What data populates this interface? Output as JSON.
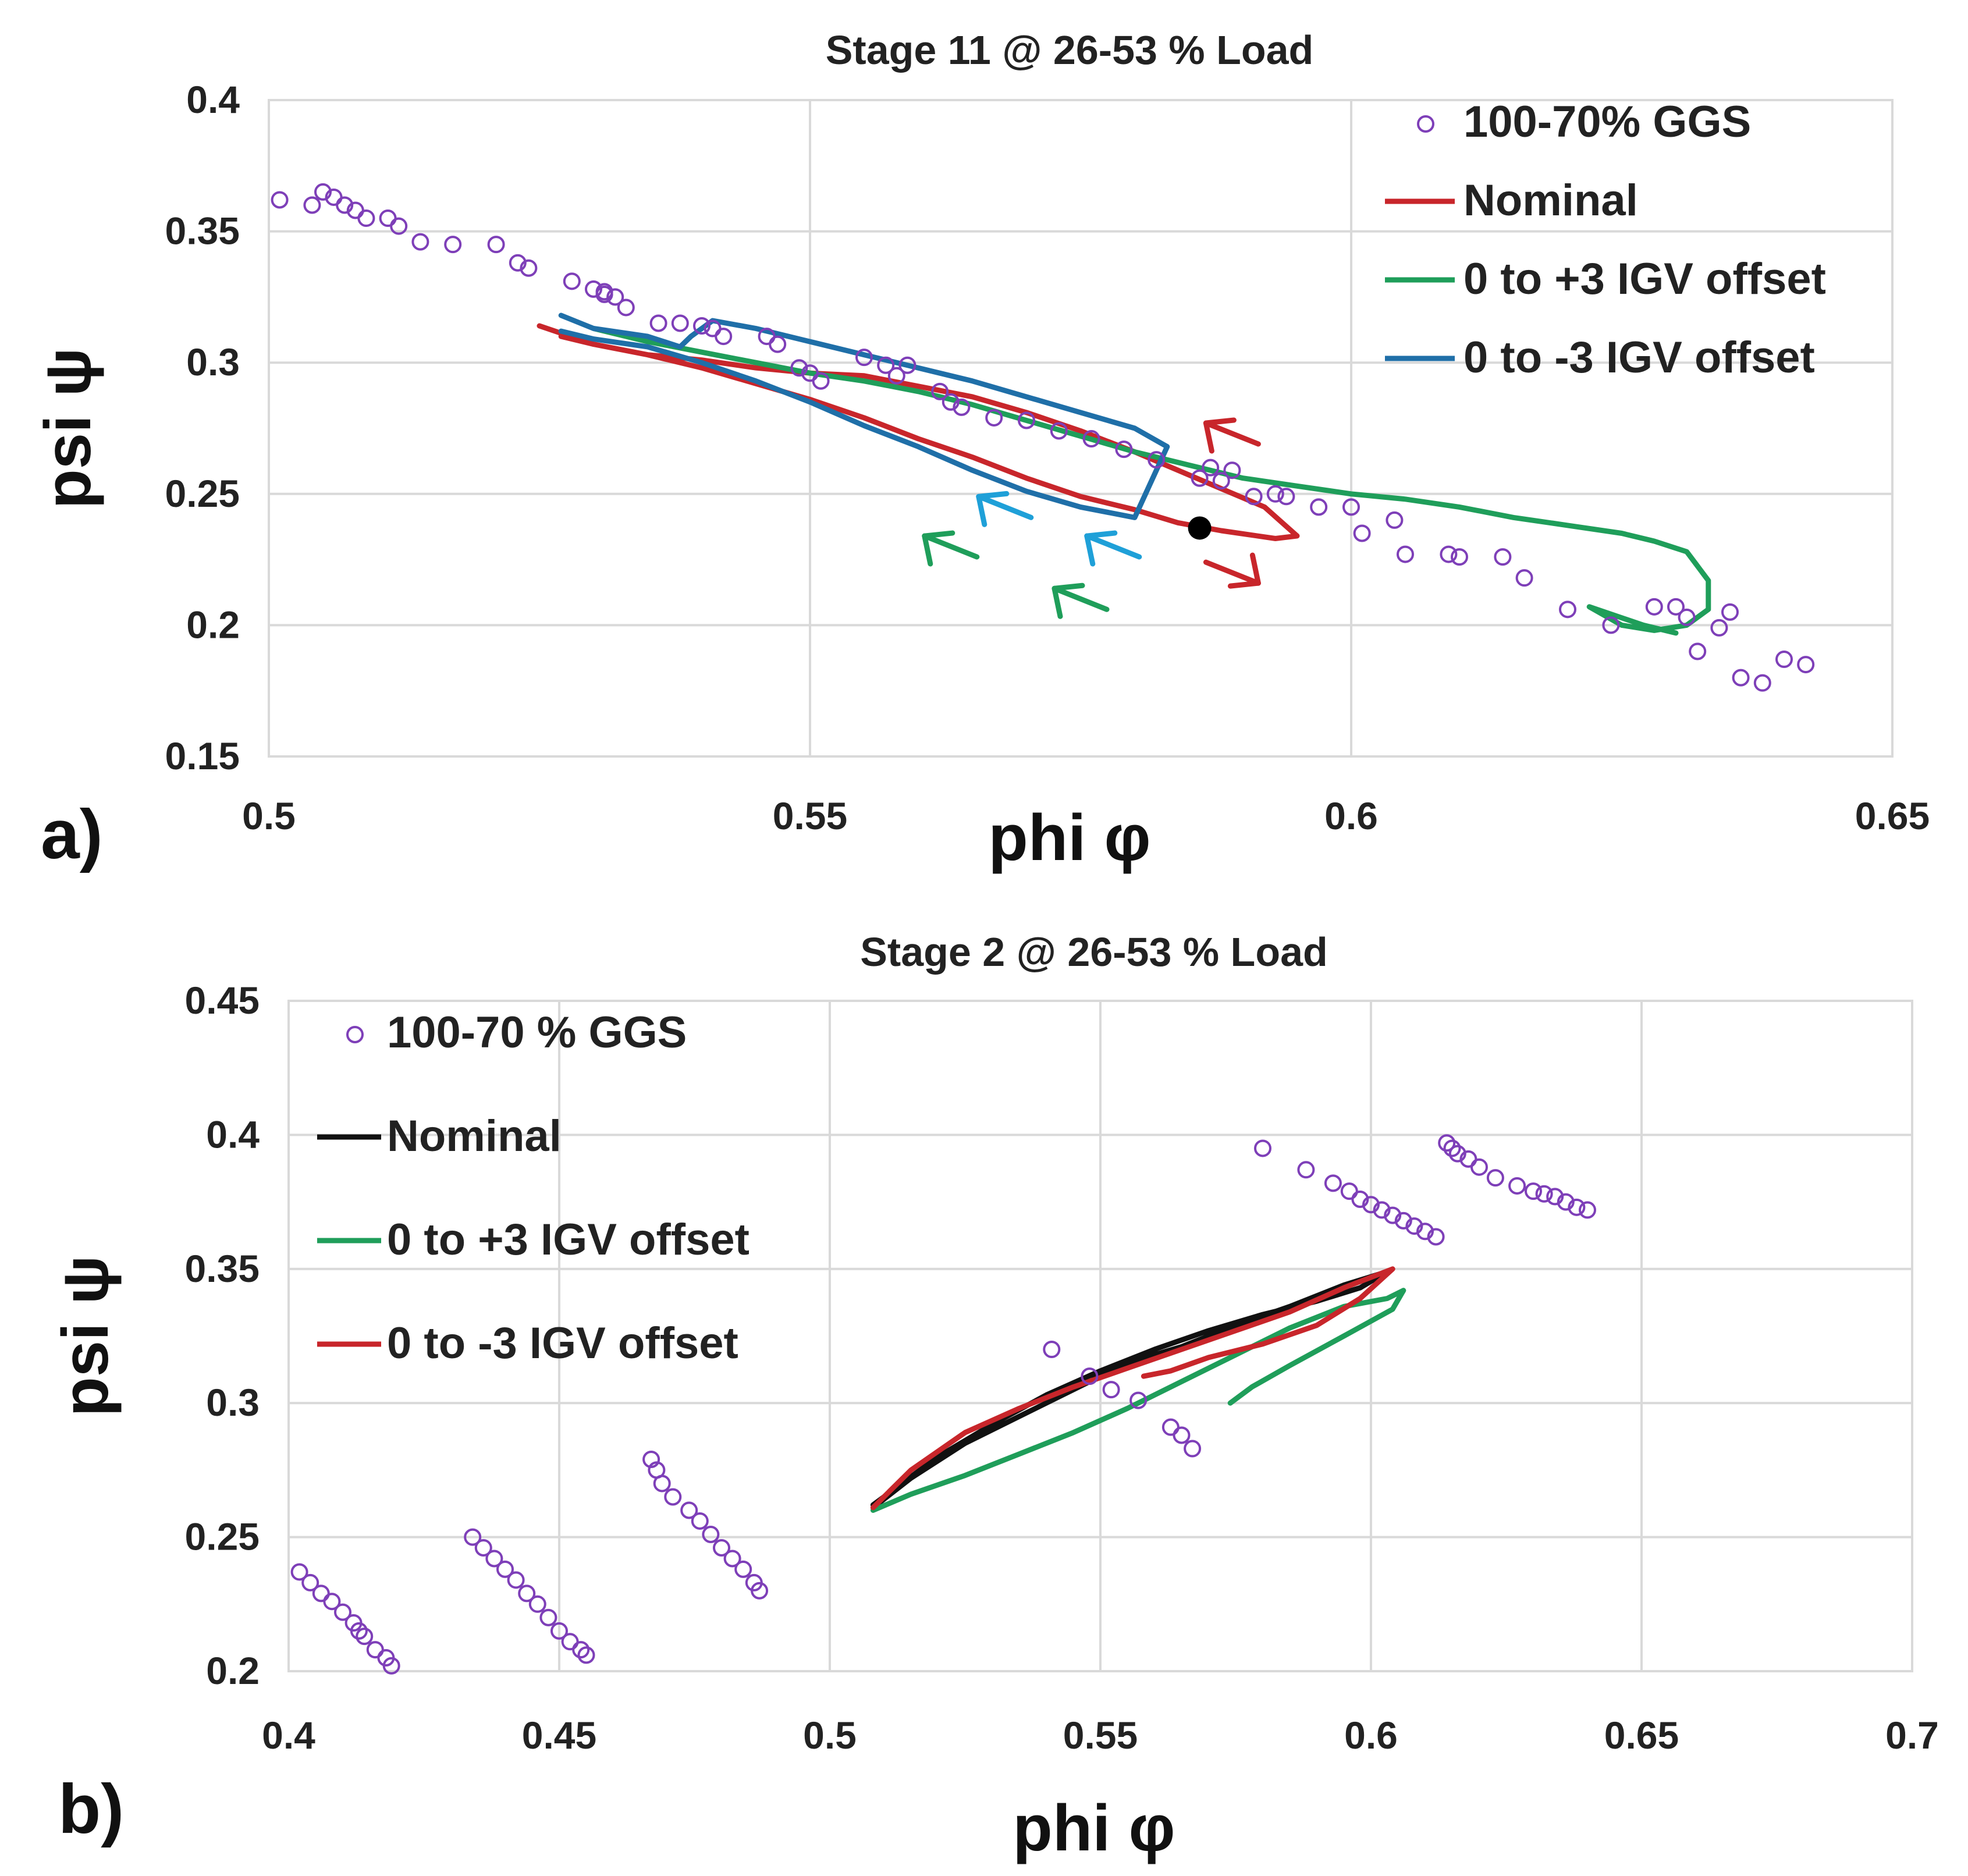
{
  "chart_data": [
    {
      "type": "scatter",
      "panel_label": "a)",
      "title": "Stage 11 @ 26-53 % Load",
      "xlabel": "phi φ",
      "ylabel": "psi ψ",
      "xlim": [
        0.5,
        0.65
      ],
      "ylim": [
        0.15,
        0.4
      ],
      "xticks": [
        "0.5",
        "0.55",
        "0.6",
        "0.65"
      ],
      "yticks": [
        "0.15",
        "0.2",
        "0.25",
        "0.3",
        "0.35",
        "0.4"
      ],
      "grid": true,
      "legend_position": "top-right",
      "legend": [
        {
          "label": "100-70% GGS",
          "kind": "marker",
          "color": "#7e3fb8"
        },
        {
          "label": "Nominal",
          "kind": "line",
          "color": "#c8262b"
        },
        {
          "label": "0 to +3 IGV offset",
          "kind": "line",
          "color": "#1f9e5a"
        },
        {
          "label": "0 to -3 IGV offset",
          "kind": "line",
          "color": "#1f6fa8"
        }
      ],
      "scatter": {
        "name": "100-70% GGS",
        "color": "#7e3fb8",
        "x": [
          0.501,
          0.504,
          0.505,
          0.506,
          0.507,
          0.508,
          0.509,
          0.511,
          0.512,
          0.514,
          0.517,
          0.521,
          0.523,
          0.524,
          0.528,
          0.53,
          0.531,
          0.531,
          0.532,
          0.533,
          0.536,
          0.538,
          0.54,
          0.541,
          0.542,
          0.546,
          0.547,
          0.549,
          0.55,
          0.551,
          0.555,
          0.557,
          0.558,
          0.559,
          0.562,
          0.563,
          0.564,
          0.567,
          0.57,
          0.573,
          0.576,
          0.579,
          0.582,
          0.586,
          0.587,
          0.588,
          0.589,
          0.591,
          0.593,
          0.594,
          0.597,
          0.6,
          0.601,
          0.604,
          0.605,
          0.609,
          0.61,
          0.614,
          0.616,
          0.62,
          0.624,
          0.628,
          0.63,
          0.631,
          0.632,
          0.634,
          0.635,
          0.636,
          0.638,
          0.64,
          0.642
        ],
        "y": [
          0.362,
          0.36,
          0.365,
          0.363,
          0.36,
          0.358,
          0.355,
          0.355,
          0.352,
          0.346,
          0.345,
          0.345,
          0.338,
          0.336,
          0.331,
          0.328,
          0.327,
          0.326,
          0.325,
          0.321,
          0.315,
          0.315,
          0.314,
          0.313,
          0.31,
          0.31,
          0.307,
          0.298,
          0.296,
          0.293,
          0.302,
          0.299,
          0.295,
          0.299,
          0.289,
          0.285,
          0.283,
          0.279,
          0.278,
          0.274,
          0.271,
          0.267,
          0.263,
          0.256,
          0.26,
          0.255,
          0.259,
          0.249,
          0.25,
          0.249,
          0.245,
          0.245,
          0.235,
          0.24,
          0.227,
          0.227,
          0.226,
          0.226,
          0.218,
          0.206,
          0.2,
          0.207,
          0.207,
          0.203,
          0.19,
          0.199,
          0.205,
          0.18,
          0.178,
          0.187,
          0.185
        ]
      },
      "series": [
        {
          "name": "Nominal",
          "color": "#c8262b",
          "x": [
            0.525,
            0.53,
            0.535,
            0.54,
            0.545,
            0.55,
            0.555,
            0.56,
            0.565,
            0.57,
            0.575,
            0.58,
            0.584,
            0.588,
            0.592,
            0.595,
            0.593,
            0.588,
            0.584,
            0.58,
            0.575,
            0.57,
            0.565,
            0.56,
            0.555,
            0.55,
            0.545,
            0.54,
            0.535,
            0.53,
            0.527
          ],
          "y": [
            0.314,
            0.307,
            0.303,
            0.301,
            0.298,
            0.296,
            0.295,
            0.291,
            0.287,
            0.281,
            0.274,
            0.266,
            0.259,
            0.252,
            0.245,
            0.234,
            0.233,
            0.236,
            0.239,
            0.244,
            0.249,
            0.256,
            0.264,
            0.271,
            0.279,
            0.286,
            0.292,
            0.298,
            0.303,
            0.307,
            0.31
          ]
        },
        {
          "name": "0 to +3 IGV offset",
          "color": "#1f9e5a",
          "x": [
            0.53,
            0.535,
            0.54,
            0.545,
            0.55,
            0.555,
            0.56,
            0.565,
            0.57,
            0.575,
            0.58,
            0.585,
            0.59,
            0.595,
            0.6,
            0.605,
            0.61,
            0.615,
            0.62,
            0.625,
            0.628,
            0.631,
            0.633,
            0.633,
            0.631,
            0.628,
            0.625,
            0.622,
            0.627,
            0.63
          ],
          "y": [
            0.313,
            0.308,
            0.304,
            0.3,
            0.296,
            0.293,
            0.289,
            0.284,
            0.278,
            0.272,
            0.266,
            0.261,
            0.256,
            0.253,
            0.25,
            0.248,
            0.245,
            0.241,
            0.238,
            0.235,
            0.232,
            0.228,
            0.217,
            0.206,
            0.2,
            0.198,
            0.2,
            0.207,
            0.2,
            0.197
          ]
        },
        {
          "name": "0 to -3 IGV offset",
          "color": "#1f6fa8",
          "x": [
            0.527,
            0.53,
            0.535,
            0.538,
            0.539,
            0.541,
            0.545,
            0.55,
            0.555,
            0.56,
            0.565,
            0.57,
            0.575,
            0.58,
            0.583,
            0.58,
            0.575,
            0.57,
            0.565,
            0.56,
            0.555,
            0.55,
            0.545,
            0.54,
            0.535,
            0.53,
            0.527
          ],
          "y": [
            0.318,
            0.313,
            0.31,
            0.306,
            0.31,
            0.316,
            0.313,
            0.308,
            0.303,
            0.298,
            0.293,
            0.287,
            0.281,
            0.275,
            0.268,
            0.241,
            0.245,
            0.251,
            0.259,
            0.268,
            0.276,
            0.285,
            0.293,
            0.3,
            0.306,
            0.309,
            0.312
          ]
        }
      ],
      "markers": [
        {
          "x": 0.586,
          "y": 0.237,
          "color": "#000000"
        }
      ],
      "arrows": [
        {
          "x": 0.589,
          "y": 0.273,
          "direction": "up-left",
          "color": "#c8262b"
        },
        {
          "x": 0.589,
          "y": 0.22,
          "direction": "down-right",
          "color": "#c8262b"
        },
        {
          "x": 0.568,
          "y": 0.245,
          "direction": "up-left",
          "color": "#1fa0d8"
        },
        {
          "x": 0.578,
          "y": 0.23,
          "direction": "up-left",
          "color": "#1fa0d8"
        },
        {
          "x": 0.563,
          "y": 0.23,
          "direction": "up-left",
          "color": "#1f9e5a"
        },
        {
          "x": 0.575,
          "y": 0.21,
          "direction": "up-left",
          "color": "#1f9e5a"
        }
      ]
    },
    {
      "type": "scatter",
      "panel_label": "b)",
      "title": "Stage 2 @ 26-53 % Load",
      "xlabel": "phi φ",
      "ylabel": "psi ψ",
      "xlim": [
        0.4,
        0.7
      ],
      "ylim": [
        0.2,
        0.45
      ],
      "xticks": [
        "0.4",
        "0.45",
        "0.5",
        "0.55",
        "0.6",
        "0.65",
        "0.7"
      ],
      "yticks": [
        "0.2",
        "0.25",
        "0.3",
        "0.35",
        "0.4",
        "0.45"
      ],
      "grid": true,
      "legend_position": "top-left",
      "legend": [
        {
          "label": "100-70 % GGS",
          "kind": "marker",
          "color": "#7e3fb8"
        },
        {
          "label": "Nominal",
          "kind": "line",
          "color": "#111111"
        },
        {
          "label": "0 to +3 IGV offset",
          "kind": "line",
          "color": "#1f9e5a"
        },
        {
          "label": "0 to -3 IGV offset",
          "kind": "line",
          "color": "#c8262b"
        }
      ],
      "scatter": {
        "name": "100-70 % GGS",
        "color": "#7e3fb8",
        "x": [
          0.402,
          0.404,
          0.406,
          0.408,
          0.41,
          0.412,
          0.413,
          0.414,
          0.416,
          0.418,
          0.419,
          0.434,
          0.436,
          0.438,
          0.44,
          0.442,
          0.444,
          0.446,
          0.448,
          0.45,
          0.452,
          0.454,
          0.455,
          0.467,
          0.468,
          0.469,
          0.471,
          0.474,
          0.476,
          0.478,
          0.48,
          0.482,
          0.484,
          0.486,
          0.487,
          0.541,
          0.548,
          0.552,
          0.557,
          0.563,
          0.565,
          0.567,
          0.58,
          0.588,
          0.593,
          0.596,
          0.598,
          0.6,
          0.602,
          0.604,
          0.606,
          0.608,
          0.61,
          0.612,
          0.614,
          0.615,
          0.616,
          0.618,
          0.62,
          0.623,
          0.627,
          0.63,
          0.632,
          0.634,
          0.636,
          0.638,
          0.64
        ],
        "y": [
          0.237,
          0.233,
          0.229,
          0.226,
          0.222,
          0.218,
          0.215,
          0.213,
          0.208,
          0.205,
          0.202,
          0.25,
          0.246,
          0.242,
          0.238,
          0.234,
          0.229,
          0.225,
          0.22,
          0.215,
          0.211,
          0.208,
          0.206,
          0.279,
          0.275,
          0.27,
          0.265,
          0.26,
          0.256,
          0.251,
          0.246,
          0.242,
          0.238,
          0.233,
          0.23,
          0.32,
          0.31,
          0.305,
          0.301,
          0.291,
          0.288,
          0.283,
          0.395,
          0.387,
          0.382,
          0.379,
          0.376,
          0.374,
          0.372,
          0.37,
          0.368,
          0.366,
          0.364,
          0.362,
          0.397,
          0.395,
          0.393,
          0.391,
          0.388,
          0.384,
          0.381,
          0.379,
          0.378,
          0.377,
          0.375,
          0.373,
          0.372
        ]
      },
      "series": [
        {
          "name": "Nominal",
          "color": "#111111",
          "x": [
            0.508,
            0.515,
            0.525,
            0.535,
            0.545,
            0.555,
            0.565,
            0.575,
            0.585,
            0.595,
            0.603,
            0.598,
            0.59,
            0.58,
            0.57,
            0.56,
            0.55,
            0.54,
            0.53,
            0.52,
            0.512,
            0.508
          ],
          "y": [
            0.261,
            0.272,
            0.285,
            0.295,
            0.305,
            0.315,
            0.321,
            0.329,
            0.336,
            0.344,
            0.349,
            0.343,
            0.338,
            0.333,
            0.327,
            0.32,
            0.312,
            0.303,
            0.292,
            0.28,
            0.268,
            0.262
          ]
        },
        {
          "name": "0 to +3 IGV offset",
          "color": "#1f9e5a",
          "x": [
            0.508,
            0.515,
            0.525,
            0.535,
            0.545,
            0.555,
            0.565,
            0.575,
            0.585,
            0.595,
            0.603,
            0.606,
            0.604,
            0.595,
            0.585,
            0.578,
            0.574
          ],
          "y": [
            0.26,
            0.266,
            0.273,
            0.281,
            0.289,
            0.298,
            0.308,
            0.318,
            0.328,
            0.336,
            0.339,
            0.342,
            0.335,
            0.325,
            0.314,
            0.306,
            0.3
          ]
        },
        {
          "name": "0 to -3 IGV offset",
          "color": "#c8262b",
          "x": [
            0.508,
            0.515,
            0.525,
            0.535,
            0.545,
            0.555,
            0.565,
            0.575,
            0.585,
            0.595,
            0.604,
            0.598,
            0.59,
            0.58,
            0.57,
            0.563,
            0.558
          ],
          "y": [
            0.261,
            0.275,
            0.289,
            0.298,
            0.306,
            0.313,
            0.32,
            0.327,
            0.334,
            0.343,
            0.35,
            0.339,
            0.329,
            0.322,
            0.317,
            0.312,
            0.31
          ]
        }
      ]
    }
  ]
}
